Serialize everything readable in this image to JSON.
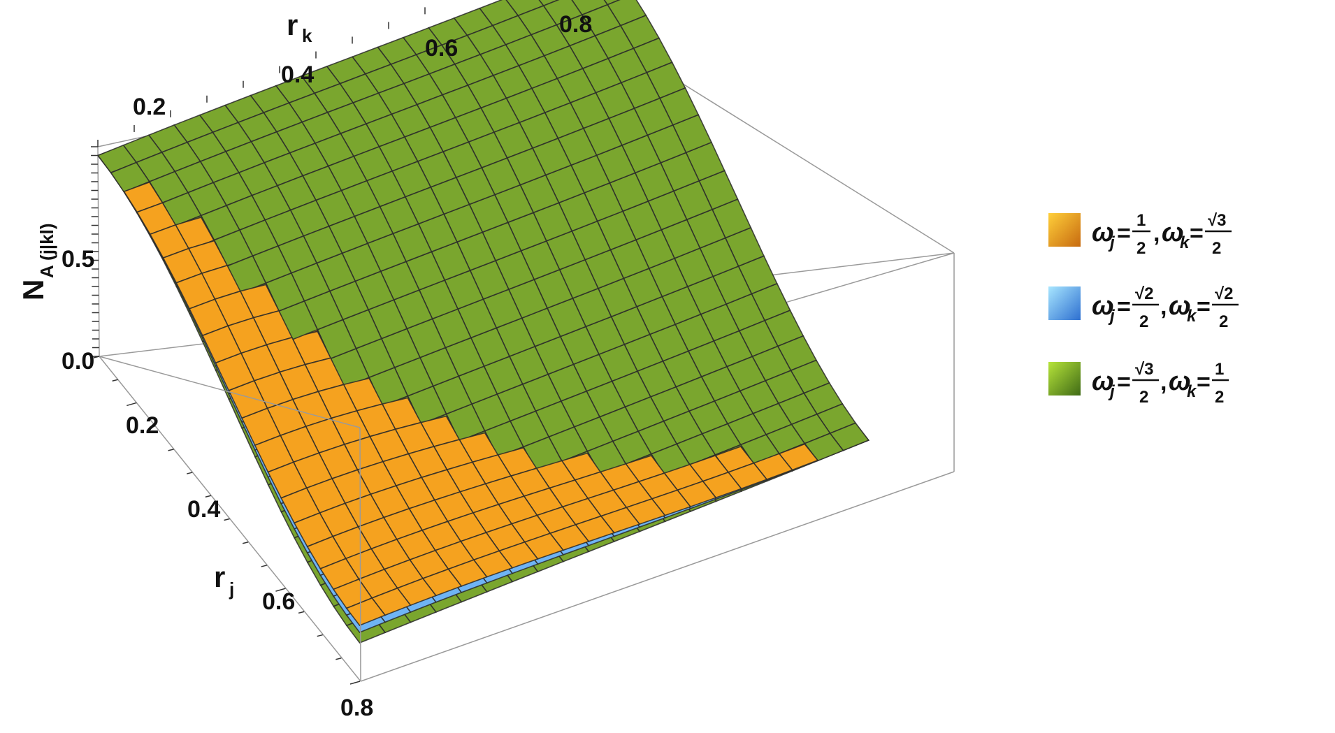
{
  "chart_data": {
    "type": "surface3d",
    "z_label": "N",
    "z_label_sub": "A (j|kl)",
    "x_label": "r",
    "x_label_sub": "j",
    "y_label": "r",
    "y_label_sub": "k",
    "x_ticks": [
      "0.2",
      "0.4",
      "0.6",
      "0.8"
    ],
    "y_ticks": [
      "0.2",
      "0.4",
      "0.6",
      "0.8"
    ],
    "z_ticks": [
      "0.0",
      "0.5"
    ],
    "xlim": [
      0.1,
      0.8
    ],
    "ylim": [
      0.1,
      0.8
    ],
    "zlim": [
      -0.2,
      1.0
    ],
    "colors": {
      "orange": "#f5a21f",
      "blue": "#6fb4f4",
      "green": "#7aa62e"
    },
    "series": [
      {
        "legend": {
          "a": "ω",
          "a_sub": "j",
          "eq": "=",
          "frac1_num": "1",
          "frac1_den": "2",
          "comma": ",",
          "b": "ω",
          "b_sub": "k",
          "frac2_num": "√3",
          "frac2_den": "2"
        },
        "color": "orange",
        "corner_values": {
          "rj_0.1_rk_0.1": 0.95,
          "rj_0.8_rk_0.1": 0.12,
          "rj_0.1_rk_0.8": 0.02,
          "rj_0.8_rk_0.8": 0.0
        }
      },
      {
        "legend": {
          "a": "ω",
          "a_sub": "j",
          "eq": "=",
          "frac1_num": "√2",
          "frac1_den": "2",
          "comma": ",",
          "b": "ω",
          "b_sub": "k",
          "frac2_num": "√2",
          "frac2_den": "2"
        },
        "color": "blue",
        "corner_values": {
          "rj_0.1_rk_0.1": 0.95,
          "rj_0.8_rk_0.1": 0.08,
          "rj_0.1_rk_0.8": 0.1,
          "rj_0.8_rk_0.8": 0.0
        }
      },
      {
        "legend": {
          "a": "ω",
          "a_sub": "j",
          "eq": "=",
          "frac1_num": "√3",
          "frac1_den": "2",
          "comma": ",",
          "b": "ω",
          "b_sub": "k",
          "frac2_num": "1",
          "frac2_den": "2"
        },
        "color": "green",
        "corner_values": {
          "rj_0.1_rk_0.1": 0.95,
          "rj_0.8_rk_0.1": 0.02,
          "rj_0.1_rk_0.8": 0.9,
          "rj_0.8_rk_0.8": 0.0
        }
      }
    ]
  }
}
